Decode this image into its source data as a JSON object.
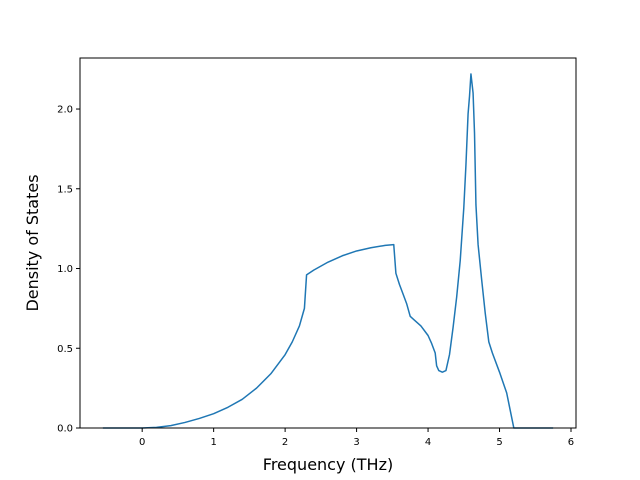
{
  "chart_data": {
    "type": "line",
    "xlabel": "Frequency (THz)",
    "ylabel": "Density of States",
    "xlim": [
      -0.87,
      6.07
    ],
    "ylim": [
      0.0,
      2.32
    ],
    "xticks": [
      0,
      1,
      2,
      3,
      4,
      5,
      6
    ],
    "yticks": [
      0.0,
      0.5,
      1.0,
      1.5,
      2.0
    ],
    "xtick_labels": [
      "0",
      "1",
      "2",
      "3",
      "4",
      "5",
      "6"
    ],
    "ytick_labels": [
      "0.0",
      "0.5",
      "1.0",
      "1.5",
      "2.0"
    ],
    "grid": false,
    "line_color": "#1f77b4",
    "series": [
      {
        "x": [
          -0.55,
          -0.3,
          0.0,
          0.2,
          0.4,
          0.6,
          0.8,
          1.0,
          1.2,
          1.4,
          1.6,
          1.8,
          2.0,
          2.1,
          2.2,
          2.27,
          2.3,
          2.4,
          2.6,
          2.8,
          3.0,
          3.2,
          3.4,
          3.52,
          3.55,
          3.6,
          3.65,
          3.7,
          3.75,
          3.8,
          3.9,
          4.0,
          4.05,
          4.1,
          4.12,
          4.15,
          4.2,
          4.25,
          4.3,
          4.35,
          4.4,
          4.45,
          4.5,
          4.53,
          4.56,
          4.58,
          4.6,
          4.63,
          4.65,
          4.67,
          4.7,
          4.75,
          4.8,
          4.85,
          4.9,
          5.0,
          5.1,
          5.2,
          5.25,
          5.3,
          5.5,
          5.75
        ],
        "y": [
          0.0,
          0.0,
          0.0,
          0.004,
          0.015,
          0.035,
          0.06,
          0.09,
          0.13,
          0.18,
          0.25,
          0.34,
          0.46,
          0.54,
          0.64,
          0.75,
          0.96,
          0.99,
          1.04,
          1.08,
          1.11,
          1.13,
          1.145,
          1.15,
          0.97,
          0.9,
          0.84,
          0.78,
          0.7,
          0.68,
          0.64,
          0.58,
          0.53,
          0.47,
          0.39,
          0.36,
          0.35,
          0.36,
          0.46,
          0.63,
          0.82,
          1.05,
          1.38,
          1.65,
          1.97,
          2.08,
          2.22,
          2.1,
          1.85,
          1.4,
          1.15,
          0.93,
          0.72,
          0.54,
          0.47,
          0.35,
          0.22,
          0.0,
          0.0,
          0.0,
          0.0,
          0.0
        ]
      }
    ]
  }
}
